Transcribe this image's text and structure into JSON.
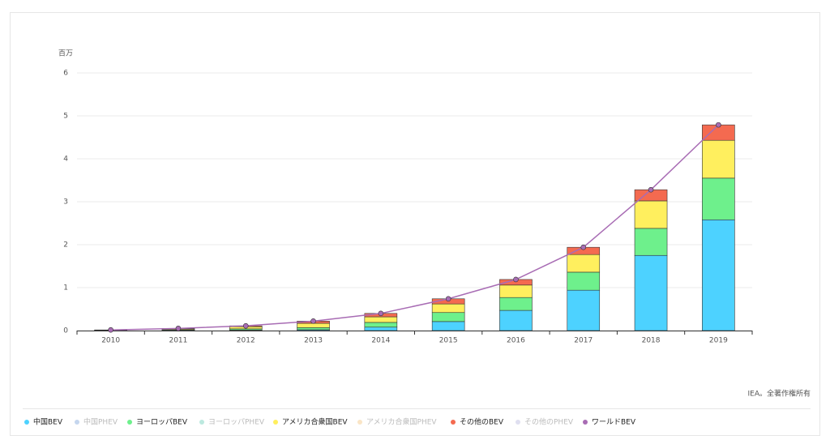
{
  "chart_data": {
    "type": "bar",
    "y_unit_label": "百万",
    "source": "IEA。全著作権所有",
    "categories": [
      "2010",
      "2011",
      "2012",
      "2013",
      "2014",
      "2015",
      "2016",
      "2017",
      "2018",
      "2019"
    ],
    "ylim": [
      0,
      6
    ],
    "yticks": [
      0,
      1,
      2,
      3,
      4,
      5,
      6
    ],
    "grid": true,
    "legend": "bottom",
    "series": [
      {
        "name": "中国BEV",
        "color": "#4dd2ff",
        "values": [
          0.001,
          0.005,
          0.01,
          0.02,
          0.08,
          0.21,
          0.47,
          0.94,
          1.75,
          2.58
        ]
      },
      {
        "name": "中国PHEV",
        "color": "#c5d6ee",
        "visible": false
      },
      {
        "name": "ヨーロッパBEV",
        "color": "#6ef08c",
        "values": [
          0.004,
          0.015,
          0.03,
          0.05,
          0.11,
          0.21,
          0.3,
          0.42,
          0.63,
          0.97
        ]
      },
      {
        "name": "ヨーロッパPHEV",
        "color": "#bce9df",
        "visible": false
      },
      {
        "name": "アメリカ合衆国BEV",
        "color": "#ffef5e",
        "values": [
          0.005,
          0.02,
          0.05,
          0.1,
          0.13,
          0.2,
          0.29,
          0.41,
          0.64,
          0.88
        ]
      },
      {
        "name": "アメリカ合衆国PHEV",
        "color": "#fae5c6",
        "visible": false
      },
      {
        "name": "その他のBEV",
        "color": "#f46a50",
        "values": [
          0.005,
          0.01,
          0.02,
          0.05,
          0.08,
          0.12,
          0.13,
          0.17,
          0.26,
          0.36
        ]
      },
      {
        "name": "その他のPHEV",
        "color": "#dfdff0",
        "visible": false
      },
      {
        "name": "ワールドBEV",
        "color": "#a86cb4",
        "type": "line",
        "values": [
          0.015,
          0.05,
          0.11,
          0.22,
          0.4,
          0.74,
          1.19,
          1.94,
          3.28,
          4.79
        ]
      }
    ]
  }
}
